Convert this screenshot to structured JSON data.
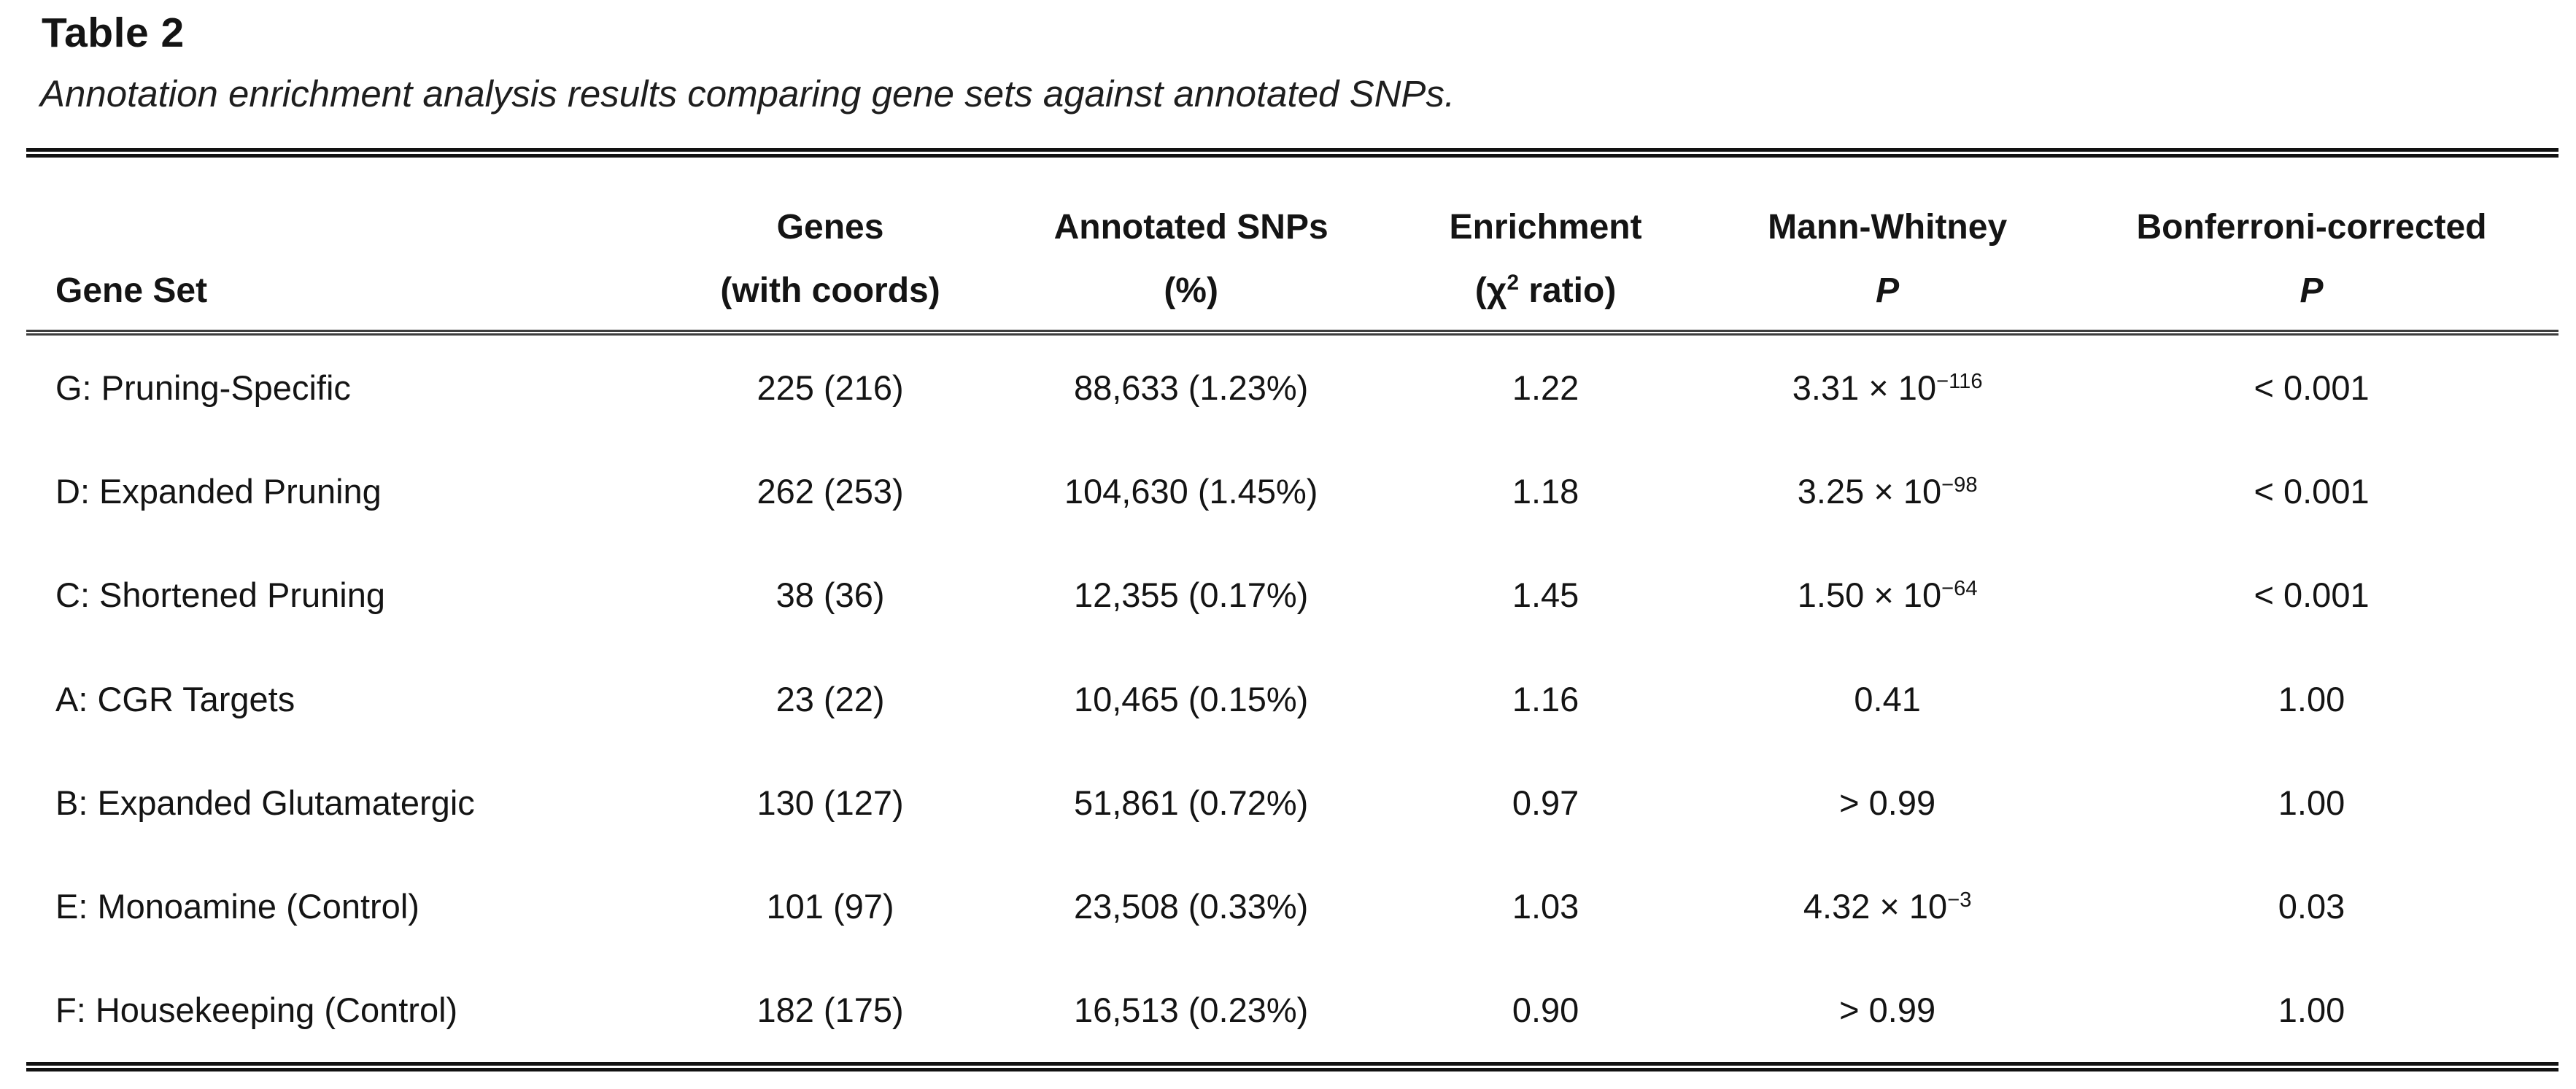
{
  "title": "Table 2",
  "subtitle": "Annotation enrichment analysis results comparing gene sets against annotated SNPs.",
  "chart_data": {
    "type": "table",
    "title": "Table 2",
    "caption": "Annotation enrichment analysis results comparing gene sets against annotated SNPs.",
    "columns": [
      "Gene Set",
      "Genes (with coords)",
      "Annotated SNPs (%)",
      "Enrichment (chi-squared ratio)",
      "Mann-Whitney P",
      "Bonferroni-corrected P"
    ],
    "rows": [
      [
        "G: Pruning-Specific",
        "225 (216)",
        "88,633 (1.23%)",
        "1.22",
        "3.31 × 10^−116",
        "< 0.001"
      ],
      [
        "D: Expanded Pruning",
        "262 (253)",
        "104,630 (1.45%)",
        "1.18",
        "3.25 × 10^−98",
        "< 0.001"
      ],
      [
        "C: Shortened Pruning",
        "38 (36)",
        "12,355 (0.17%)",
        "1.45",
        "1.50 × 10^−64",
        "< 0.001"
      ],
      [
        "A: CGR Targets",
        "23 (22)",
        "10,465 (0.15%)",
        "1.16",
        "0.41",
        "1.00"
      ],
      [
        "B: Expanded Glutamatergic",
        "130 (127)",
        "51,861 (0.72%)",
        "0.97",
        "> 0.99",
        "1.00"
      ],
      [
        "E: Monoamine (Control)",
        "101 (97)",
        "23,508 (0.33%)",
        "1.03",
        "4.32 × 10^−3",
        "0.03"
      ],
      [
        "F: Housekeeping (Control)",
        "182 (175)",
        "16,513 (0.23%)",
        "0.90",
        "> 0.99",
        "1.00"
      ]
    ]
  },
  "table": {
    "columns": [
      {
        "key": "gene_set",
        "align": "left",
        "header_lines": [
          "Gene Set"
        ]
      },
      {
        "key": "genes",
        "align": "center",
        "header_lines": [
          "Genes",
          "(with coords)"
        ]
      },
      {
        "key": "annotated_snps",
        "align": "center",
        "header_lines": [
          "Annotated SNPs",
          "(%)"
        ]
      },
      {
        "key": "enrichment",
        "align": "center",
        "header_lines": [
          "Enrichment",
          {
            "text": "(χ",
            "sup": "2",
            "after": " ratio)"
          }
        ]
      },
      {
        "key": "mann_whitney",
        "align": "center",
        "header_lines": [
          "Mann-Whitney",
          {
            "text": "P",
            "italic": true
          }
        ]
      },
      {
        "key": "bonferroni",
        "align": "center",
        "header_lines": [
          "Bonferroni-corrected",
          {
            "text": "P",
            "italic": true
          }
        ]
      }
    ],
    "rows": [
      {
        "gene_set": "G: Pruning-Specific",
        "genes": "225 (216)",
        "annotated_snps": "88,633 (1.23%)",
        "enrichment": "1.22",
        "mann_whitney": {
          "text": "3.31 × 10",
          "sup": "−116"
        },
        "bonferroni": "< 0.001"
      },
      {
        "gene_set": "D: Expanded Pruning",
        "genes": "262 (253)",
        "annotated_snps": "104,630 (1.45%)",
        "enrichment": "1.18",
        "mann_whitney": {
          "text": "3.25 × 10",
          "sup": "−98"
        },
        "bonferroni": "< 0.001"
      },
      {
        "gene_set": "C: Shortened Pruning",
        "genes": "38 (36)",
        "annotated_snps": "12,355 (0.17%)",
        "enrichment": "1.45",
        "mann_whitney": {
          "text": "1.50 × 10",
          "sup": "−64"
        },
        "bonferroni": "< 0.001"
      },
      {
        "gene_set": "A: CGR Targets",
        "genes": "23 (22)",
        "annotated_snps": "10,465 (0.15%)",
        "enrichment": "1.16",
        "mann_whitney": "0.41",
        "bonferroni": "1.00"
      },
      {
        "gene_set": "B: Expanded Glutamatergic",
        "genes": "130 (127)",
        "annotated_snps": "51,861 (0.72%)",
        "enrichment": "0.97",
        "mann_whitney": "> 0.99",
        "bonferroni": "1.00"
      },
      {
        "gene_set": "E: Monoamine (Control)",
        "genes": "101 (97)",
        "annotated_snps": "23,508 (0.33%)",
        "enrichment": "1.03",
        "mann_whitney": {
          "text": "4.32 × 10",
          "sup": "−3"
        },
        "bonferroni": "0.03"
      },
      {
        "gene_set": "F: Housekeeping (Control)",
        "genes": "182 (175)",
        "annotated_snps": "16,513 (0.23%)",
        "enrichment": "0.90",
        "mann_whitney": "> 0.99",
        "bonferroni": "1.00"
      }
    ]
  },
  "colors": {
    "text": "#141414",
    "rule_heavy": "#121212",
    "rule_mid": "#3d3d3d",
    "background": "#ffffff"
  }
}
